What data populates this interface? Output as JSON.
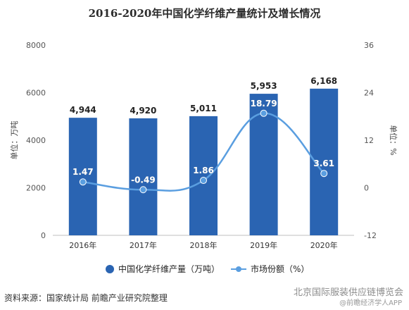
{
  "title": "2016-2020年中国化学纤维产量统计及增长情况",
  "source": "资料来源：国家统计局 前瞻产业研究院整理",
  "watermark": "北京国际服装供应链博览会",
  "watermark_sub": "@前瞻经济学人APP",
  "chart_data": {
    "type": "bar",
    "categories": [
      "2016年",
      "2017年",
      "2018年",
      "2019年",
      "2020年"
    ],
    "series": [
      {
        "name": "中国化学纤维产量（万吨）",
        "type": "bar",
        "axis": "left",
        "color": "#2a64b2",
        "values": [
          4944,
          4920,
          5011,
          5953,
          6168
        ],
        "labels": [
          "4,944",
          "4,920",
          "5,011",
          "5,953",
          "6,168"
        ]
      },
      {
        "name": "市场份额（%）",
        "type": "line",
        "axis": "right",
        "color": "#5a9ee0",
        "values": [
          1.47,
          -0.49,
          1.86,
          18.79,
          3.61
        ],
        "labels": [
          "1.47",
          "-0.49",
          "1.86",
          "18.79",
          "3.61"
        ]
      }
    ],
    "ylabel_left": "单位：万吨",
    "ylabel_right": "单位：%",
    "ylim_left": [
      0,
      8000
    ],
    "ylim_right": [
      -12,
      36
    ],
    "yticks_left": [
      "0",
      "2000",
      "4000",
      "6000",
      "8000"
    ],
    "yticks_right": [
      "-12",
      "0",
      "12",
      "24",
      "36"
    ],
    "grid": false,
    "legend": "bottom"
  }
}
